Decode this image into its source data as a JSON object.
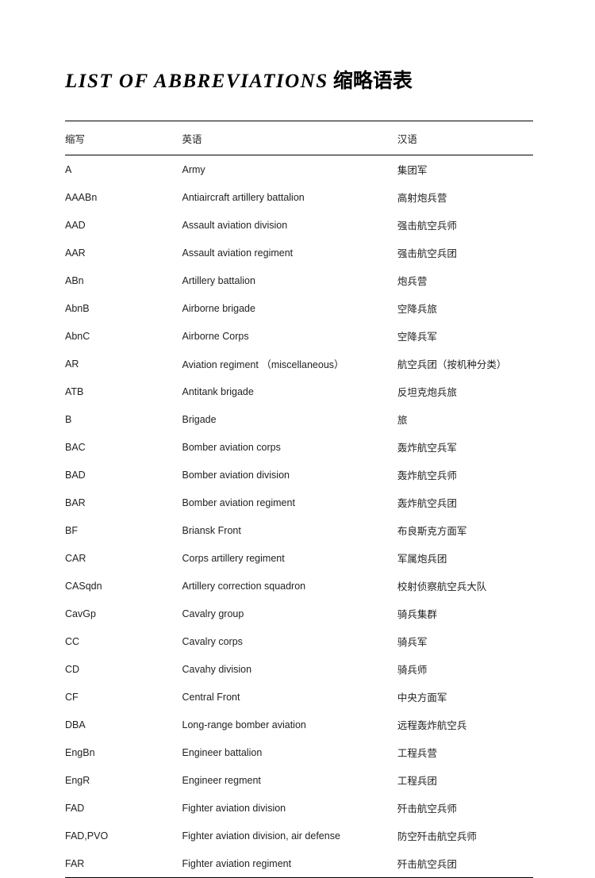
{
  "title_en": "LIST  OF  ABBREVIATIONS",
  "title_cn": " 缩略语表",
  "headers": {
    "abbr": "缩写",
    "en": "英语",
    "cn": "汉语"
  },
  "rows": [
    {
      "abbr": "A",
      "en": "Army",
      "cn": "集团军"
    },
    {
      "abbr": "AAABn",
      "en": "Antiaircraft artillery battalion",
      "cn": "高射炮兵营"
    },
    {
      "abbr": "AAD",
      "en": "Assault aviation division",
      "cn": "强击航空兵师"
    },
    {
      "abbr": "AAR",
      "en": "Assault aviation regiment",
      "cn": "强击航空兵团"
    },
    {
      "abbr": "ABn",
      "en": "Artillery battalion",
      "cn": "炮兵营"
    },
    {
      "abbr": "AbnB",
      "en": "Airborne brigade",
      "cn": "空降兵旅"
    },
    {
      "abbr": "AbnC",
      "en": "Airborne Corps",
      "cn": "空降兵军"
    },
    {
      "abbr": "AR",
      "en": "Aviation regiment （miscellaneous）",
      "cn": "航空兵团（按机种分类）"
    },
    {
      "abbr": "ATB",
      "en": "Antitank brigade",
      "cn": "反坦克炮兵旅"
    },
    {
      "abbr": "B",
      "en": "Brigade",
      "cn": "旅"
    },
    {
      "abbr": "BAC",
      "en": "Bomber aviation corps",
      "cn": "轰炸航空兵军"
    },
    {
      "abbr": "BAD",
      "en": "Bomber aviation division",
      "cn": "轰炸航空兵师"
    },
    {
      "abbr": "BAR",
      "en": "Bomber aviation regiment",
      "cn": "轰炸航空兵团"
    },
    {
      "abbr": "BF",
      "en": "Briansk Front",
      "cn": "布良斯克方面军"
    },
    {
      "abbr": "CAR",
      "en": "Corps artillery regiment",
      "cn": "军属炮兵团"
    },
    {
      "abbr": "CASqdn",
      "en": "Artillery correction squadron",
      "cn": "校射侦察航空兵大队"
    },
    {
      "abbr": "CavGp",
      "en": "Cavalry group",
      "cn": "骑兵集群"
    },
    {
      "abbr": "CC",
      "en": "Cavalry corps",
      "cn": "骑兵军"
    },
    {
      "abbr": "CD",
      "en": "Cavahy division",
      "cn": "骑兵师"
    },
    {
      "abbr": "CF",
      "en": "Central Front",
      "cn": "中央方面军"
    },
    {
      "abbr": "DBA",
      "en": "Long-range bomber aviation",
      "cn": "远程轰炸航空兵"
    },
    {
      "abbr": "EngBn",
      "en": "Engineer battalion",
      "cn": "工程兵营"
    },
    {
      "abbr": "EngR",
      "en": "Engineer regment",
      "cn": "工程兵团"
    },
    {
      "abbr": "FAD",
      "en": "Fighter aviation division",
      "cn": "歼击航空兵师"
    },
    {
      "abbr": "FAD,PVO",
      "en": "Fighter aviation division, air defense",
      "cn": "防空歼击航空兵师"
    },
    {
      "abbr": "FAR",
      "en": "Fighter aviation regiment",
      "cn": "歼击航空兵团"
    }
  ]
}
